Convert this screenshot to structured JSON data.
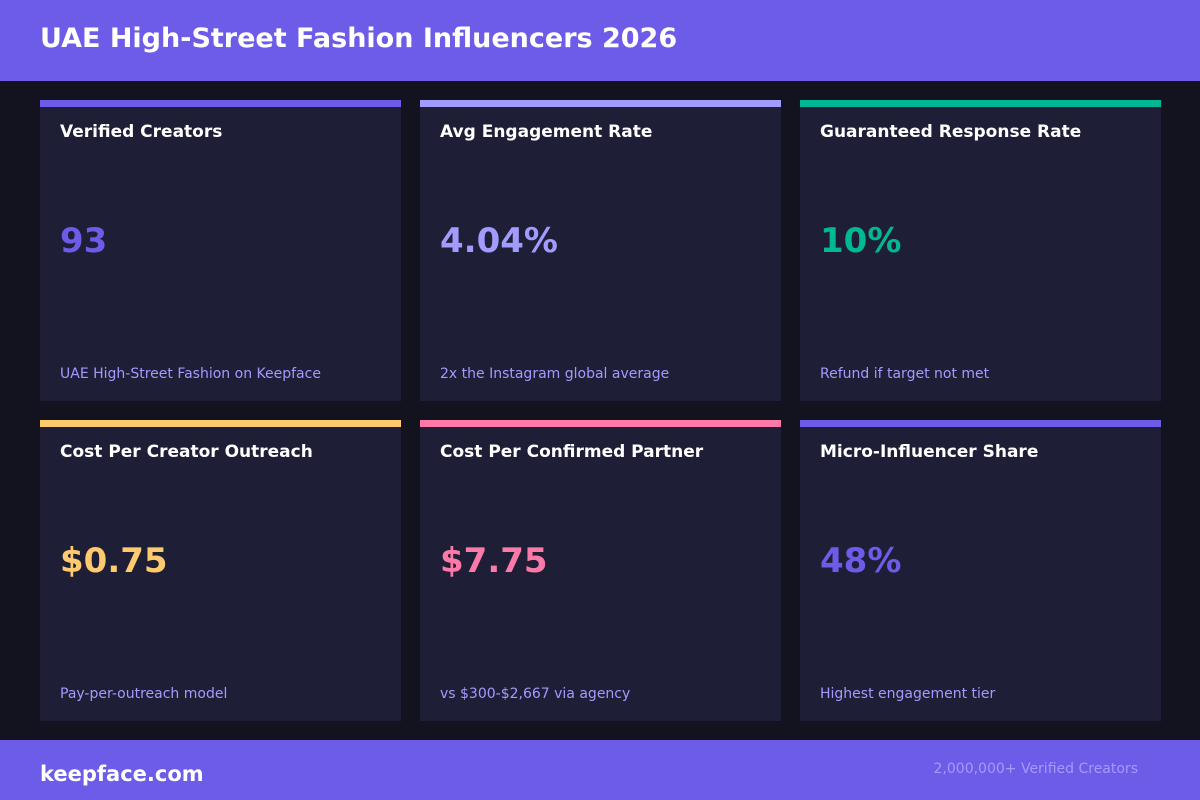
{
  "header": {
    "title": "UAE High-Street Fashion Influencers 2026"
  },
  "cards": [
    {
      "title": "Verified Creators",
      "value": "93",
      "subtitle": "UAE High-Street Fashion on Keepface",
      "accent_color": "#6c5ce7",
      "value_color": "#6c5ce7"
    },
    {
      "title": "Avg Engagement Rate",
      "value": "4.04%",
      "subtitle": "2x the Instagram global average",
      "accent_color": "#a29bfe",
      "value_color": "#a29bfe"
    },
    {
      "title": "Guaranteed Response Rate",
      "value": "10%",
      "subtitle": "Refund if target not met",
      "accent_color": "#00b894",
      "value_color": "#00b894"
    },
    {
      "title": "Cost Per Creator Outreach",
      "value": "$0.75",
      "subtitle": "Pay-per-outreach model",
      "accent_color": "#fdcb6e",
      "value_color": "#fdcb6e"
    },
    {
      "title": "Cost Per Confirmed Partner",
      "value": "$7.75",
      "subtitle": "vs $300-$2,667 via agency",
      "accent_color": "#fd79a8",
      "value_color": "#fd79a8"
    },
    {
      "title": "Micro-Influencer Share",
      "value": "48%",
      "subtitle": "Highest engagement tier",
      "accent_color": "#6c5ce7",
      "value_color": "#6c5ce7"
    }
  ],
  "footer": {
    "brand": "keepface.com",
    "stat": "2,000,000+ Verified Creators"
  }
}
